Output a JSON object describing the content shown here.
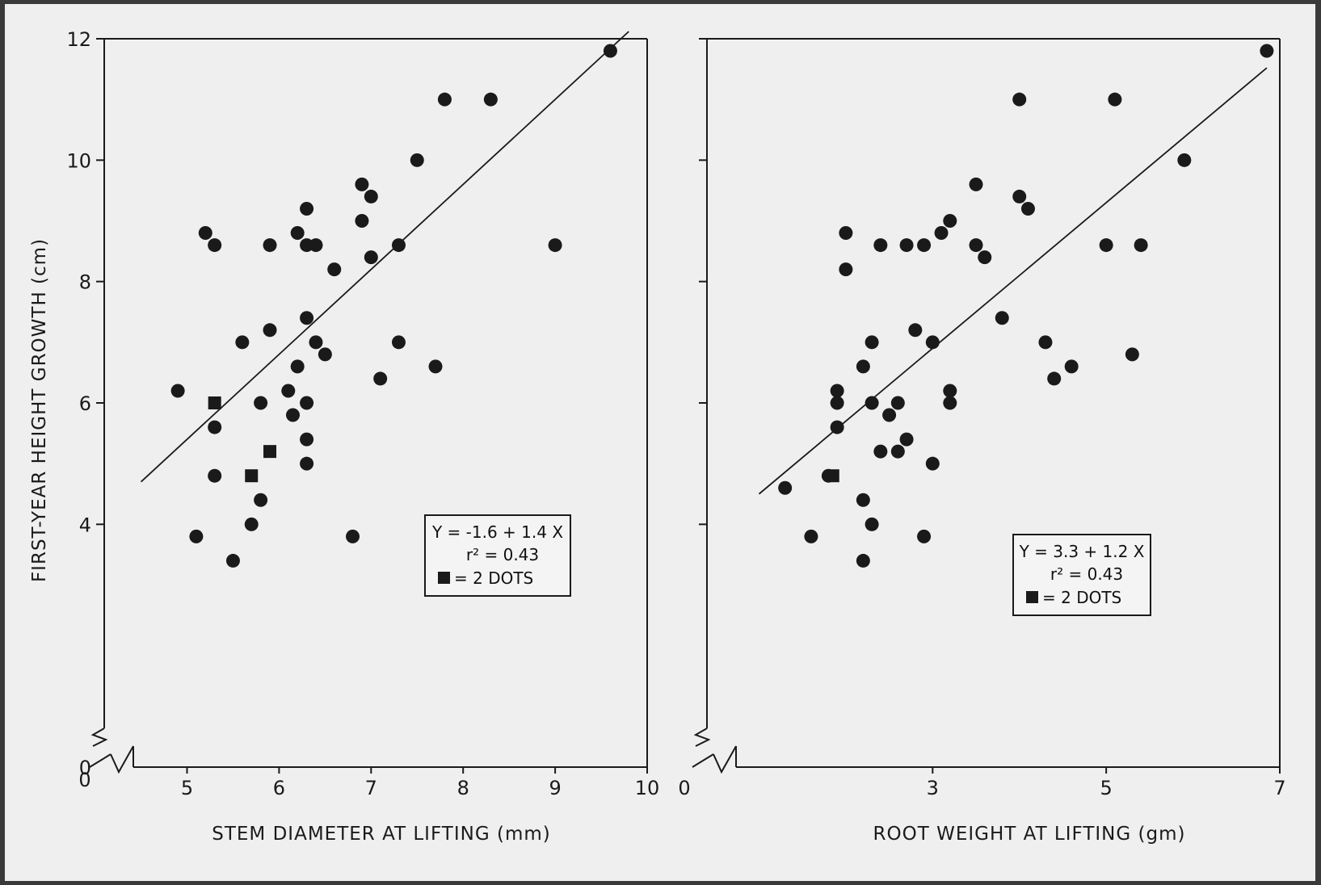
{
  "figure": {
    "ylabel": "FIRST-YEAR HEIGHT GROWTH (cm)",
    "background": "#efefef",
    "ink": "#1a1a1a"
  },
  "chart_data": [
    {
      "type": "scatter",
      "xlabel": "STEM DIAMETER AT LIFTING (mm)",
      "ylabel": "FIRST-YEAR HEIGHT GROWTH (cm)",
      "x_ticks": [
        5,
        6,
        7,
        8,
        9,
        10
      ],
      "y_ticks": [
        0,
        4,
        6,
        8,
        10,
        12
      ],
      "xlim": [
        4.1,
        10
      ],
      "ylim": [
        0,
        12
      ],
      "axis_break": true,
      "regression": {
        "intercept": -1.6,
        "slope": 1.4,
        "x_range": [
          4.5,
          9.8
        ]
      },
      "legend": {
        "equation": "Y = -1.6 + 1.4 X",
        "r2": "r² = 0.43",
        "square_note": "= 2 DOTS",
        "position": "bottom-right"
      },
      "points": [
        {
          "x": 4.9,
          "y": 6.2
        },
        {
          "x": 5.1,
          "y": 3.8
        },
        {
          "x": 5.2,
          "y": 8.8
        },
        {
          "x": 5.3,
          "y": 8.6
        },
        {
          "x": 5.3,
          "y": 5.6
        },
        {
          "x": 5.3,
          "y": 4.8
        },
        {
          "x": 5.5,
          "y": 3.4
        },
        {
          "x": 5.6,
          "y": 7.0
        },
        {
          "x": 5.8,
          "y": 6.0
        },
        {
          "x": 5.8,
          "y": 4.4
        },
        {
          "x": 5.9,
          "y": 8.6
        },
        {
          "x": 5.9,
          "y": 7.2
        },
        {
          "x": 6.1,
          "y": 6.2
        },
        {
          "x": 6.15,
          "y": 5.8
        },
        {
          "x": 6.2,
          "y": 8.8
        },
        {
          "x": 6.2,
          "y": 6.6
        },
        {
          "x": 6.3,
          "y": 9.2
        },
        {
          "x": 6.3,
          "y": 8.6
        },
        {
          "x": 6.3,
          "y": 7.4
        },
        {
          "x": 6.3,
          "y": 6.0
        },
        {
          "x": 6.3,
          "y": 5.4
        },
        {
          "x": 6.3,
          "y": 5.0
        },
        {
          "x": 6.4,
          "y": 8.6
        },
        {
          "x": 6.4,
          "y": 7.0
        },
        {
          "x": 6.5,
          "y": 6.8
        },
        {
          "x": 6.6,
          "y": 8.2
        },
        {
          "x": 6.8,
          "y": 3.8
        },
        {
          "x": 6.9,
          "y": 9.0
        },
        {
          "x": 6.9,
          "y": 9.6
        },
        {
          "x": 7.0,
          "y": 9.4
        },
        {
          "x": 7.0,
          "y": 8.4
        },
        {
          "x": 7.1,
          "y": 6.4
        },
        {
          "x": 7.3,
          "y": 7.0
        },
        {
          "x": 7.3,
          "y": 8.6
        },
        {
          "x": 7.5,
          "y": 10.0
        },
        {
          "x": 7.7,
          "y": 6.6
        },
        {
          "x": 7.8,
          "y": 11.0
        },
        {
          "x": 8.3,
          "y": 11.0
        },
        {
          "x": 9.0,
          "y": 8.6
        },
        {
          "x": 9.6,
          "y": 11.8
        },
        {
          "x": 5.7,
          "y": 4.0
        }
      ],
      "squares": [
        {
          "x": 5.3,
          "y": 6.0
        },
        {
          "x": 5.7,
          "y": 4.8
        },
        {
          "x": 5.9,
          "y": 5.2
        }
      ]
    },
    {
      "type": "scatter",
      "xlabel": "ROOT WEIGHT AT LIFTING (gm)",
      "ylabel": "FIRST-YEAR HEIGHT GROWTH (cm)",
      "x_ticks": [
        0,
        3,
        5,
        7
      ],
      "y_ticks": [
        0,
        4,
        6,
        8,
        10,
        12
      ],
      "xlim": [
        0.4,
        7.0
      ],
      "ylim": [
        0,
        12
      ],
      "axis_break": true,
      "regression": {
        "intercept": 3.3,
        "slope": 1.2,
        "x_range": [
          1.0,
          6.85
        ]
      },
      "legend": {
        "equation": "Y = 3.3 + 1.2 X",
        "r2": "r² = 0.43",
        "square_note": "= 2 DOTS",
        "position": "bottom-right"
      },
      "points": [
        {
          "x": 1.3,
          "y": 4.6
        },
        {
          "x": 1.6,
          "y": 3.8
        },
        {
          "x": 1.8,
          "y": 4.8
        },
        {
          "x": 1.9,
          "y": 5.6
        },
        {
          "x": 2.0,
          "y": 8.8
        },
        {
          "x": 2.0,
          "y": 8.2
        },
        {
          "x": 1.9,
          "y": 6.2
        },
        {
          "x": 1.9,
          "y": 6.0
        },
        {
          "x": 2.2,
          "y": 6.6
        },
        {
          "x": 2.2,
          "y": 4.4
        },
        {
          "x": 2.2,
          "y": 3.4
        },
        {
          "x": 2.3,
          "y": 7.0
        },
        {
          "x": 2.3,
          "y": 6.0
        },
        {
          "x": 2.3,
          "y": 4.0
        },
        {
          "x": 2.4,
          "y": 8.6
        },
        {
          "x": 2.4,
          "y": 5.2
        },
        {
          "x": 2.5,
          "y": 5.8
        },
        {
          "x": 2.6,
          "y": 5.2
        },
        {
          "x": 2.6,
          "y": 6.0
        },
        {
          "x": 2.7,
          "y": 8.6
        },
        {
          "x": 2.7,
          "y": 5.4
        },
        {
          "x": 2.8,
          "y": 7.2
        },
        {
          "x": 2.9,
          "y": 8.6
        },
        {
          "x": 2.9,
          "y": 3.8
        },
        {
          "x": 3.0,
          "y": 7.0
        },
        {
          "x": 3.0,
          "y": 5.0
        },
        {
          "x": 3.1,
          "y": 8.8
        },
        {
          "x": 3.2,
          "y": 9.0
        },
        {
          "x": 3.2,
          "y": 6.2
        },
        {
          "x": 3.2,
          "y": 6.0
        },
        {
          "x": 3.5,
          "y": 9.6
        },
        {
          "x": 3.5,
          "y": 8.6
        },
        {
          "x": 3.6,
          "y": 8.4
        },
        {
          "x": 3.8,
          "y": 7.4
        },
        {
          "x": 4.0,
          "y": 11.0
        },
        {
          "x": 4.0,
          "y": 9.4
        },
        {
          "x": 4.1,
          "y": 9.2
        },
        {
          "x": 4.3,
          "y": 7.0
        },
        {
          "x": 4.4,
          "y": 6.4
        },
        {
          "x": 4.6,
          "y": 6.6
        },
        {
          "x": 5.0,
          "y": 8.6
        },
        {
          "x": 5.1,
          "y": 11.0
        },
        {
          "x": 5.3,
          "y": 6.8
        },
        {
          "x": 5.4,
          "y": 8.6
        },
        {
          "x": 5.9,
          "y": 10.0
        },
        {
          "x": 6.85,
          "y": 11.8
        }
      ],
      "squares": [
        {
          "x": 1.85,
          "y": 4.8
        }
      ]
    }
  ]
}
